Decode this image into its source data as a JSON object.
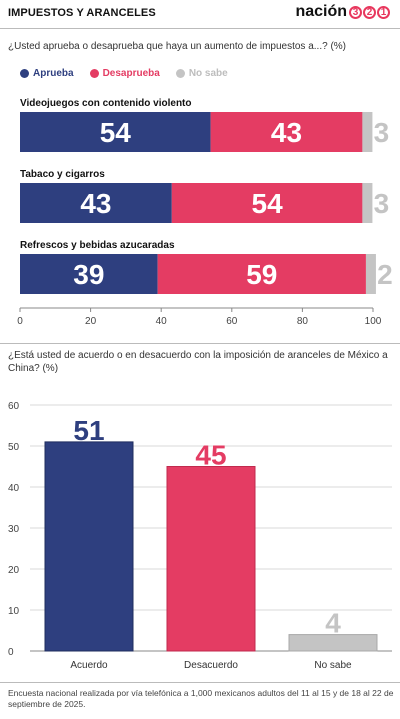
{
  "header": {
    "title": "IMPUESTOS Y ARANCELES",
    "logo_word": "nación",
    "logo_digits": [
      "3",
      "2",
      "1"
    ]
  },
  "colors": {
    "aprueba": "#2e3f7f",
    "desaprueba": "#e43c63",
    "nosabe": "#c4c4c4"
  },
  "chart_data": [
    {
      "type": "bar",
      "orientation": "horizontal",
      "stacked": true,
      "title": "¿Usted aprueba o desaprueba que haya un aumento de impuestos a...? (%)",
      "legend": [
        "Aprueba",
        "Desaprueba",
        "No sabe"
      ],
      "legend_position": "top-left",
      "categories": [
        "Videojuegos con contenido violento",
        "Tabaco y cigarros",
        "Refrescos y bebidas azucaradas"
      ],
      "series": [
        {
          "name": "Aprueba",
          "values": [
            54,
            43,
            39
          ]
        },
        {
          "name": "Desaprueba",
          "values": [
            43,
            54,
            59
          ]
        },
        {
          "name": "No sabe",
          "values": [
            3,
            3,
            2
          ]
        }
      ],
      "xlim": [
        0,
        100
      ],
      "xticks": [
        0,
        20,
        40,
        60,
        80,
        100
      ],
      "grid": false
    },
    {
      "type": "bar",
      "title": "¿Está usted de acuerdo o en desacuerdo con la imposición de aranceles de México a China? (%)",
      "categories": [
        "Acuerdo",
        "Desacuerdo",
        "No sabe"
      ],
      "values": [
        51,
        45,
        4
      ],
      "ylim": [
        0,
        60
      ],
      "yticks": [
        0,
        10,
        20,
        30,
        40,
        50,
        60
      ],
      "grid": true
    }
  ],
  "footer": {
    "note": "Encuesta nacional realizada por vía telefónica a 1,000 mexicanos adultos del 11 al 15 y de 18 al 22 de septiembre de 2025."
  }
}
